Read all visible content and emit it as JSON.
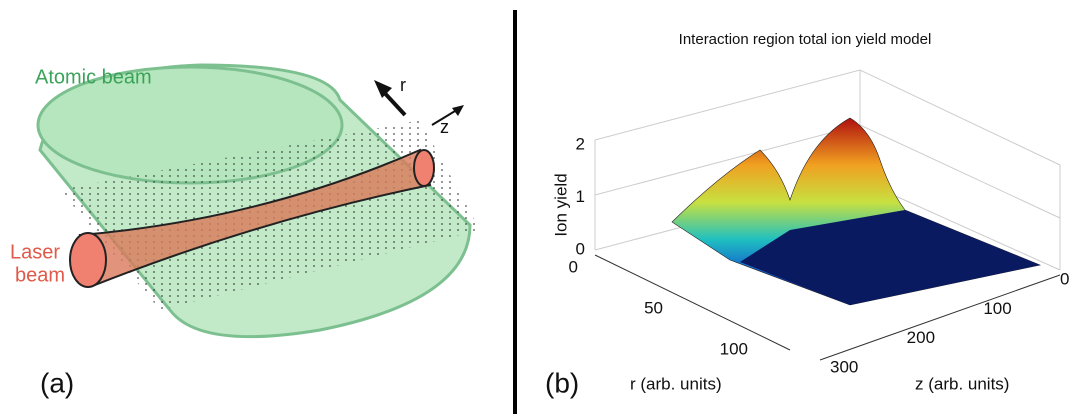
{
  "panel_a": {
    "atomic_beam": "Atomic beam",
    "arrow_r": "r",
    "arrow_z": "z",
    "laser_beam": [
      "Laser",
      "beam"
    ],
    "label": "(a)"
  },
  "panel_b": {
    "title": "Interaction region total ion yield model",
    "vertical_axis_label": "Ion yield",
    "vertical_ticks": [
      0,
      1,
      2
    ],
    "r_axis_label": "r (arb. units)",
    "r_ticks": [
      0,
      50,
      100
    ],
    "z_axis_label": "z (arb. units)",
    "z_ticks": [
      0,
      100,
      200,
      300
    ],
    "label": "(b)"
  }
}
